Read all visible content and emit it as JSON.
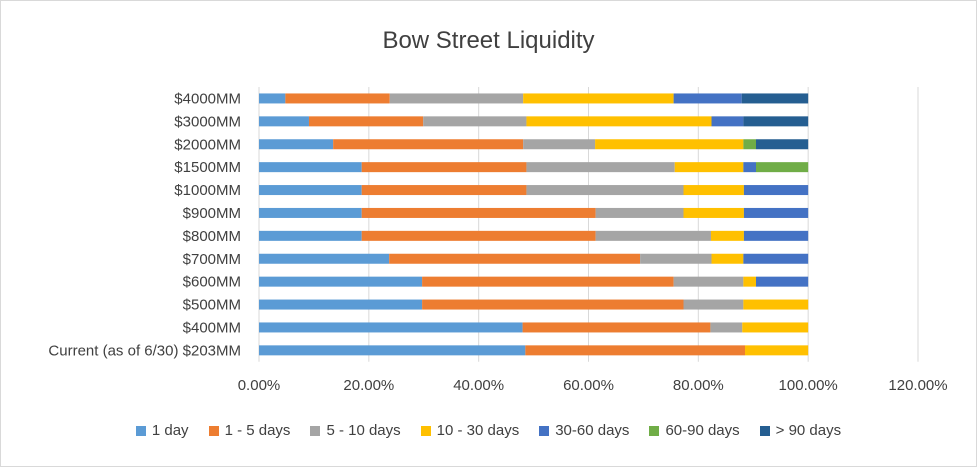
{
  "chart_data": {
    "type": "bar",
    "orientation": "horizontal",
    "stacked": true,
    "title": "Bow Street Liquidity",
    "xlabel": "",
    "ylabel": "",
    "xlim": [
      0,
      1.2
    ],
    "x_ticks": [
      "0.00%",
      "20.00%",
      "40.00%",
      "60.00%",
      "80.00%",
      "100.00%",
      "120.00%"
    ],
    "grid": true,
    "legend_position": "bottom",
    "categories": [
      "$4000MM",
      "$3000MM",
      "$2000MM",
      "$1500MM",
      "$1000MM",
      "$900MM",
      "$800MM",
      "$700MM",
      "$600MM",
      "$500MM",
      "$400MM",
      "Current (as of 6/30) $203MM"
    ],
    "series": [
      {
        "name": "1 day",
        "color": "#5b9bd5",
        "values": [
          0.048,
          0.091,
          0.135,
          0.187,
          0.187,
          0.187,
          0.187,
          0.237,
          0.297,
          0.297,
          0.48,
          0.485
        ]
      },
      {
        "name": "1 - 5 days",
        "color": "#ed7d31",
        "values": [
          0.19,
          0.208,
          0.346,
          0.3,
          0.3,
          0.426,
          0.426,
          0.457,
          0.458,
          0.476,
          0.342,
          0.4
        ]
      },
      {
        "name": "5 - 10 days",
        "color": "#a5a5a5",
        "values": [
          0.243,
          0.188,
          0.131,
          0.27,
          0.286,
          0.16,
          0.21,
          0.13,
          0.127,
          0.109,
          0.058,
          0.0
        ]
      },
      {
        "name": "10 - 30 days",
        "color": "#ffc000",
        "values": [
          0.274,
          0.337,
          0.27,
          0.125,
          0.11,
          0.11,
          0.06,
          0.058,
          0.023,
          0.118,
          0.12,
          0.115
        ]
      },
      {
        "name": "30-60 days",
        "color": "#4472c4",
        "values": [
          0.124,
          0.058,
          0.0,
          0.023,
          0.117,
          0.117,
          0.117,
          0.118,
          0.095,
          0.0,
          0.0,
          0.0
        ]
      },
      {
        "name": "60-90 days",
        "color": "#70ad47",
        "values": [
          0.0,
          0.0,
          0.023,
          0.095,
          0.0,
          0.0,
          0.0,
          0.0,
          0.0,
          0.0,
          0.0,
          0.0
        ]
      },
      {
        "name": "> 90 days",
        "color": "#255e91",
        "values": [
          0.121,
          0.118,
          0.095,
          0.0,
          0.0,
          0.0,
          0.0,
          0.0,
          0.0,
          0.0,
          0.0,
          0.0
        ]
      }
    ]
  }
}
